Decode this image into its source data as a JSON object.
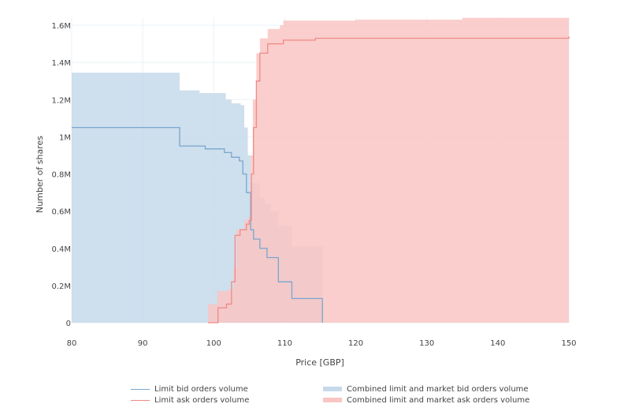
{
  "chart_data": {
    "type": "area",
    "title": "",
    "xlabel": "Price [GBP]",
    "ylabel": "Number of shares",
    "xlim": [
      80,
      150
    ],
    "ylim": [
      0,
      1650000
    ],
    "x_ticks": [
      80,
      90,
      100,
      110,
      120,
      130,
      140,
      150
    ],
    "x_tick_labels": [
      "80",
      "90",
      "100",
      "110",
      "120",
      "130",
      "140",
      "150"
    ],
    "y_ticks": [
      0,
      200000,
      400000,
      600000,
      800000,
      1000000,
      1200000,
      1400000,
      1600000
    ],
    "y_tick_labels": [
      "0",
      "0.2M",
      "0.4M",
      "0.6M",
      "0.8M",
      "1M",
      "1.2M",
      "1.4M",
      "1.6M"
    ],
    "grid": true,
    "legend_position": "bottom",
    "series": [
      {
        "name": "Combined limit and market bid orders volume",
        "kind": "fill",
        "color": "#c6d9ea",
        "points": [
          [
            80,
            1345000
          ],
          [
            95.2,
            1250000
          ],
          [
            98,
            1235000
          ],
          [
            101.7,
            1200000
          ],
          [
            102.5,
            1180000
          ],
          [
            103.8,
            1170000
          ],
          [
            104.3,
            1050000
          ],
          [
            104.8,
            900000
          ],
          [
            105.2,
            750000
          ],
          [
            106.5,
            675000
          ],
          [
            107.2,
            640000
          ],
          [
            108,
            600000
          ],
          [
            109.1,
            520000
          ],
          [
            111,
            410000
          ],
          [
            115.3,
            0
          ]
        ]
      },
      {
        "name": "Combined limit and market ask orders volume",
        "kind": "fill",
        "color": "#f9c5c3",
        "points": [
          [
            99.2,
            100000
          ],
          [
            100.5,
            170000
          ],
          [
            102,
            180000
          ],
          [
            102.8,
            300000
          ],
          [
            103.2,
            500000
          ],
          [
            104.3,
            550000
          ],
          [
            104.8,
            570000
          ],
          [
            105.2,
            900000
          ],
          [
            105.5,
            1200000
          ],
          [
            106,
            1450000
          ],
          [
            106.5,
            1530000
          ],
          [
            107.6,
            1580000
          ],
          [
            109.3,
            1600000
          ],
          [
            109.8,
            1625000
          ],
          [
            120,
            1630000
          ],
          [
            135,
            1640000
          ],
          [
            150,
            1640000
          ]
        ]
      },
      {
        "name": "Limit bid orders volume",
        "kind": "line",
        "color": "#7aa6d0",
        "points": [
          [
            80,
            1050000
          ],
          [
            95.2,
            950000
          ],
          [
            98.8,
            935000
          ],
          [
            101.5,
            915000
          ],
          [
            102.5,
            890000
          ],
          [
            103.6,
            870000
          ],
          [
            104.1,
            800000
          ],
          [
            104.6,
            700000
          ],
          [
            105.2,
            500000
          ],
          [
            105.6,
            450000
          ],
          [
            106.5,
            400000
          ],
          [
            107.5,
            350000
          ],
          [
            109.1,
            220000
          ],
          [
            111,
            130000
          ],
          [
            115.3,
            0
          ]
        ]
      },
      {
        "name": "Limit ask orders volume",
        "kind": "line",
        "color": "#f08a86",
        "points": [
          [
            99.2,
            0
          ],
          [
            100.6,
            80000
          ],
          [
            101.8,
            100000
          ],
          [
            102.5,
            220000
          ],
          [
            103,
            470000
          ],
          [
            103.7,
            500000
          ],
          [
            104.6,
            530000
          ],
          [
            105,
            550000
          ],
          [
            105.3,
            800000
          ],
          [
            105.6,
            1050000
          ],
          [
            106,
            1300000
          ],
          [
            106.5,
            1450000
          ],
          [
            107.6,
            1500000
          ],
          [
            109.8,
            1520000
          ],
          [
            114.3,
            1530000
          ],
          [
            150,
            1540000
          ]
        ]
      }
    ]
  },
  "legend": {
    "bid_line": "Limit bid orders volume",
    "ask_line": "Limit ask orders volume",
    "bid_fill": "Combined limit and market bid orders volume",
    "ask_fill": "Combined limit and market ask orders volume"
  }
}
